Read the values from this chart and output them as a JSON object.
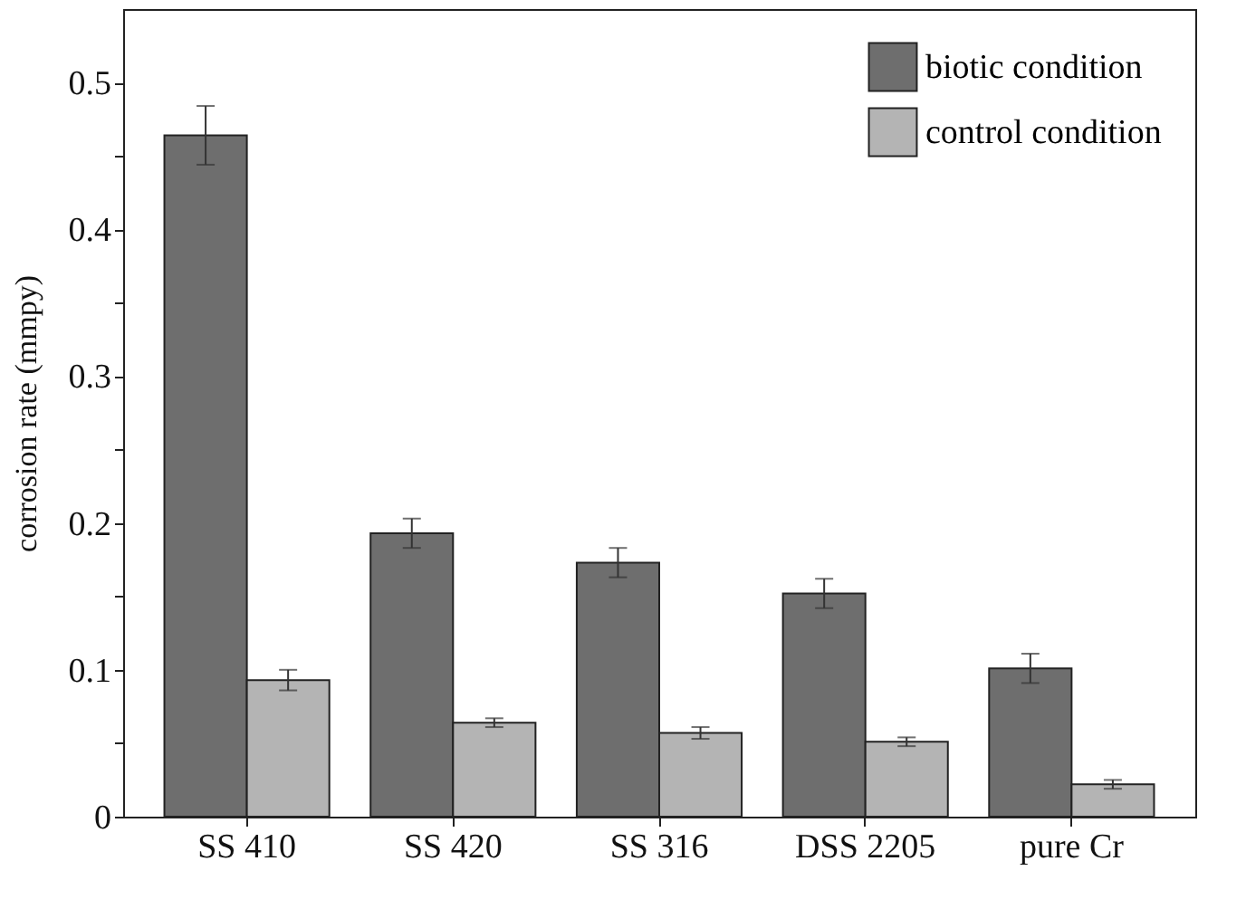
{
  "chart_data": {
    "type": "bar",
    "ylabel": "corrosion rate (mmpy)",
    "categories": [
      "SS 410",
      "SS 420",
      "SS 316",
      "DSS 2205",
      "pure Cr"
    ],
    "series": [
      {
        "name": "biotic condition",
        "color": "#6e6e6e",
        "values": [
          0.464,
          0.193,
          0.173,
          0.152,
          0.101
        ],
        "errors": [
          0.02,
          0.01,
          0.01,
          0.01,
          0.01
        ]
      },
      {
        "name": "control condition",
        "color": "#b4b4b4",
        "values": [
          0.093,
          0.064,
          0.057,
          0.051,
          0.022
        ],
        "errors": [
          0.007,
          0.003,
          0.004,
          0.003,
          0.003
        ]
      }
    ],
    "ylim": [
      0,
      0.55
    ],
    "yticks": [
      0,
      {
        "value": 0.05,
        "label": null
      },
      0.1,
      {
        "value": 0.15,
        "label": null
      },
      0.2,
      {
        "value": 0.25,
        "label": null
      },
      0.3,
      {
        "value": 0.35,
        "label": null
      },
      0.4,
      {
        "value": 0.45,
        "label": null
      },
      0.5
    ],
    "grid": false,
    "legend": "top right"
  }
}
